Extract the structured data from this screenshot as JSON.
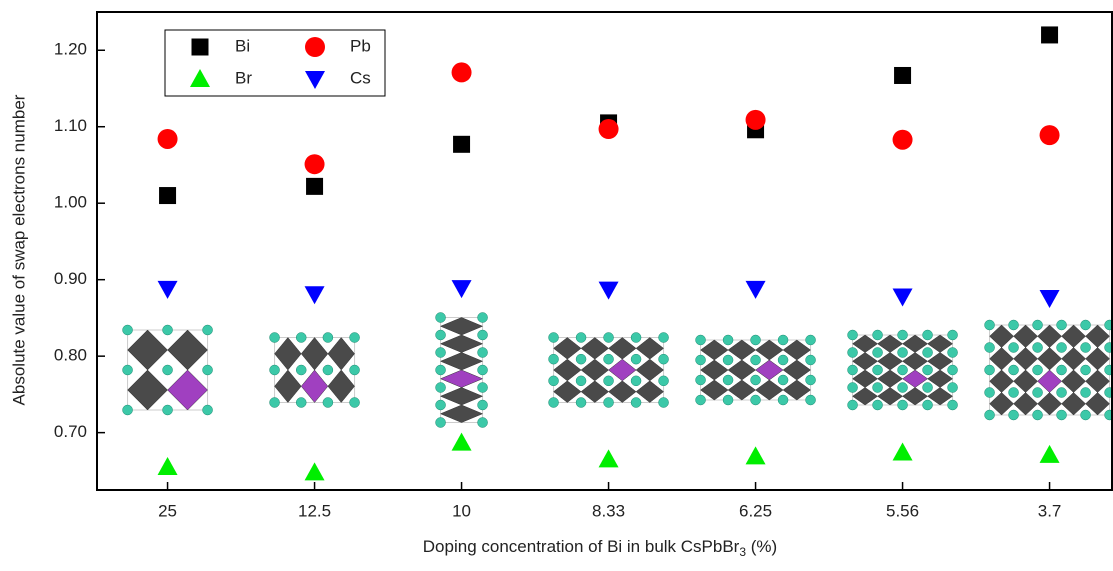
{
  "chart_data": {
    "type": "scatter",
    "x_label": "Doping concentration of Bi in bulk CsPbBr",
    "x_label_sub": "3",
    "x_label_end": " (%)",
    "y_label": "Absolute value of swap electrons number",
    "categories": [
      "25",
      "12.5",
      "10",
      "8.33",
      "6.25",
      "5.56",
      "3.7"
    ],
    "series": [
      {
        "name": "Bi",
        "color": "#000000",
        "marker": "square",
        "values": [
          1.01,
          1.022,
          1.077,
          1.105,
          1.096,
          1.167,
          1.22
        ]
      },
      {
        "name": "Pb",
        "color": "#ff0000",
        "marker": "circle",
        "values": [
          1.084,
          1.051,
          1.171,
          1.097,
          1.109,
          1.083,
          1.089
        ]
      },
      {
        "name": "Br",
        "color": "#00ee00",
        "marker": "triangle-up",
        "values": [
          0.655,
          0.648,
          0.687,
          0.665,
          0.669,
          0.674,
          0.671
        ]
      },
      {
        "name": "Cs",
        "color": "#0000ff",
        "marker": "triangle-down",
        "values": [
          0.888,
          0.881,
          0.889,
          0.887,
          0.888,
          0.878,
          0.876
        ]
      }
    ],
    "ylim": [
      0.625,
      1.25
    ],
    "yticks": [
      {
        "value": 0.7,
        "label": "0.70"
      },
      {
        "value": 0.8,
        "label": "0.80"
      },
      {
        "value": 0.9,
        "label": "0.90"
      },
      {
        "value": 1.0,
        "label": "1.00"
      },
      {
        "value": 1.1,
        "label": "1.10"
      },
      {
        "value": 1.2,
        "label": "1.20"
      }
    ],
    "grid": false
  }
}
